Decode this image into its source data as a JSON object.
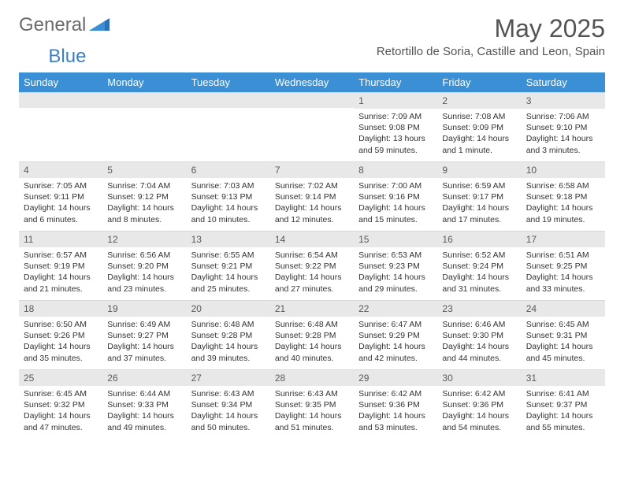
{
  "logo": {
    "text1": "General",
    "text2": "Blue"
  },
  "title": "May 2025",
  "location": "Retortillo de Soria, Castille and Leon, Spain",
  "weekdays": [
    "Sunday",
    "Monday",
    "Tuesday",
    "Wednesday",
    "Thursday",
    "Friday",
    "Saturday"
  ],
  "colors": {
    "header_bg": "#3b8fd4",
    "header_text": "#ffffff",
    "daybar_bg": "#e8e8e8",
    "text": "#333333",
    "title_text": "#545454",
    "logo_gray": "#6a6a6a",
    "logo_blue": "#3b7fc4"
  },
  "fonts": {
    "title_size": 32,
    "location_size": 15,
    "weekday_size": 13,
    "daynum_size": 12,
    "content_size": 10.5
  },
  "weeks": [
    [
      {
        "n": "",
        "sr": "",
        "ss": "",
        "dl": ""
      },
      {
        "n": "",
        "sr": "",
        "ss": "",
        "dl": ""
      },
      {
        "n": "",
        "sr": "",
        "ss": "",
        "dl": ""
      },
      {
        "n": "",
        "sr": "",
        "ss": "",
        "dl": ""
      },
      {
        "n": "1",
        "sr": "Sunrise: 7:09 AM",
        "ss": "Sunset: 9:08 PM",
        "dl": "Daylight: 13 hours and 59 minutes."
      },
      {
        "n": "2",
        "sr": "Sunrise: 7:08 AM",
        "ss": "Sunset: 9:09 PM",
        "dl": "Daylight: 14 hours and 1 minute."
      },
      {
        "n": "3",
        "sr": "Sunrise: 7:06 AM",
        "ss": "Sunset: 9:10 PM",
        "dl": "Daylight: 14 hours and 3 minutes."
      }
    ],
    [
      {
        "n": "4",
        "sr": "Sunrise: 7:05 AM",
        "ss": "Sunset: 9:11 PM",
        "dl": "Daylight: 14 hours and 6 minutes."
      },
      {
        "n": "5",
        "sr": "Sunrise: 7:04 AM",
        "ss": "Sunset: 9:12 PM",
        "dl": "Daylight: 14 hours and 8 minutes."
      },
      {
        "n": "6",
        "sr": "Sunrise: 7:03 AM",
        "ss": "Sunset: 9:13 PM",
        "dl": "Daylight: 14 hours and 10 minutes."
      },
      {
        "n": "7",
        "sr": "Sunrise: 7:02 AM",
        "ss": "Sunset: 9:14 PM",
        "dl": "Daylight: 14 hours and 12 minutes."
      },
      {
        "n": "8",
        "sr": "Sunrise: 7:00 AM",
        "ss": "Sunset: 9:16 PM",
        "dl": "Daylight: 14 hours and 15 minutes."
      },
      {
        "n": "9",
        "sr": "Sunrise: 6:59 AM",
        "ss": "Sunset: 9:17 PM",
        "dl": "Daylight: 14 hours and 17 minutes."
      },
      {
        "n": "10",
        "sr": "Sunrise: 6:58 AM",
        "ss": "Sunset: 9:18 PM",
        "dl": "Daylight: 14 hours and 19 minutes."
      }
    ],
    [
      {
        "n": "11",
        "sr": "Sunrise: 6:57 AM",
        "ss": "Sunset: 9:19 PM",
        "dl": "Daylight: 14 hours and 21 minutes."
      },
      {
        "n": "12",
        "sr": "Sunrise: 6:56 AM",
        "ss": "Sunset: 9:20 PM",
        "dl": "Daylight: 14 hours and 23 minutes."
      },
      {
        "n": "13",
        "sr": "Sunrise: 6:55 AM",
        "ss": "Sunset: 9:21 PM",
        "dl": "Daylight: 14 hours and 25 minutes."
      },
      {
        "n": "14",
        "sr": "Sunrise: 6:54 AM",
        "ss": "Sunset: 9:22 PM",
        "dl": "Daylight: 14 hours and 27 minutes."
      },
      {
        "n": "15",
        "sr": "Sunrise: 6:53 AM",
        "ss": "Sunset: 9:23 PM",
        "dl": "Daylight: 14 hours and 29 minutes."
      },
      {
        "n": "16",
        "sr": "Sunrise: 6:52 AM",
        "ss": "Sunset: 9:24 PM",
        "dl": "Daylight: 14 hours and 31 minutes."
      },
      {
        "n": "17",
        "sr": "Sunrise: 6:51 AM",
        "ss": "Sunset: 9:25 PM",
        "dl": "Daylight: 14 hours and 33 minutes."
      }
    ],
    [
      {
        "n": "18",
        "sr": "Sunrise: 6:50 AM",
        "ss": "Sunset: 9:26 PM",
        "dl": "Daylight: 14 hours and 35 minutes."
      },
      {
        "n": "19",
        "sr": "Sunrise: 6:49 AM",
        "ss": "Sunset: 9:27 PM",
        "dl": "Daylight: 14 hours and 37 minutes."
      },
      {
        "n": "20",
        "sr": "Sunrise: 6:48 AM",
        "ss": "Sunset: 9:28 PM",
        "dl": "Daylight: 14 hours and 39 minutes."
      },
      {
        "n": "21",
        "sr": "Sunrise: 6:48 AM",
        "ss": "Sunset: 9:28 PM",
        "dl": "Daylight: 14 hours and 40 minutes."
      },
      {
        "n": "22",
        "sr": "Sunrise: 6:47 AM",
        "ss": "Sunset: 9:29 PM",
        "dl": "Daylight: 14 hours and 42 minutes."
      },
      {
        "n": "23",
        "sr": "Sunrise: 6:46 AM",
        "ss": "Sunset: 9:30 PM",
        "dl": "Daylight: 14 hours and 44 minutes."
      },
      {
        "n": "24",
        "sr": "Sunrise: 6:45 AM",
        "ss": "Sunset: 9:31 PM",
        "dl": "Daylight: 14 hours and 45 minutes."
      }
    ],
    [
      {
        "n": "25",
        "sr": "Sunrise: 6:45 AM",
        "ss": "Sunset: 9:32 PM",
        "dl": "Daylight: 14 hours and 47 minutes."
      },
      {
        "n": "26",
        "sr": "Sunrise: 6:44 AM",
        "ss": "Sunset: 9:33 PM",
        "dl": "Daylight: 14 hours and 49 minutes."
      },
      {
        "n": "27",
        "sr": "Sunrise: 6:43 AM",
        "ss": "Sunset: 9:34 PM",
        "dl": "Daylight: 14 hours and 50 minutes."
      },
      {
        "n": "28",
        "sr": "Sunrise: 6:43 AM",
        "ss": "Sunset: 9:35 PM",
        "dl": "Daylight: 14 hours and 51 minutes."
      },
      {
        "n": "29",
        "sr": "Sunrise: 6:42 AM",
        "ss": "Sunset: 9:36 PM",
        "dl": "Daylight: 14 hours and 53 minutes."
      },
      {
        "n": "30",
        "sr": "Sunrise: 6:42 AM",
        "ss": "Sunset: 9:36 PM",
        "dl": "Daylight: 14 hours and 54 minutes."
      },
      {
        "n": "31",
        "sr": "Sunrise: 6:41 AM",
        "ss": "Sunset: 9:37 PM",
        "dl": "Daylight: 14 hours and 55 minutes."
      }
    ]
  ]
}
